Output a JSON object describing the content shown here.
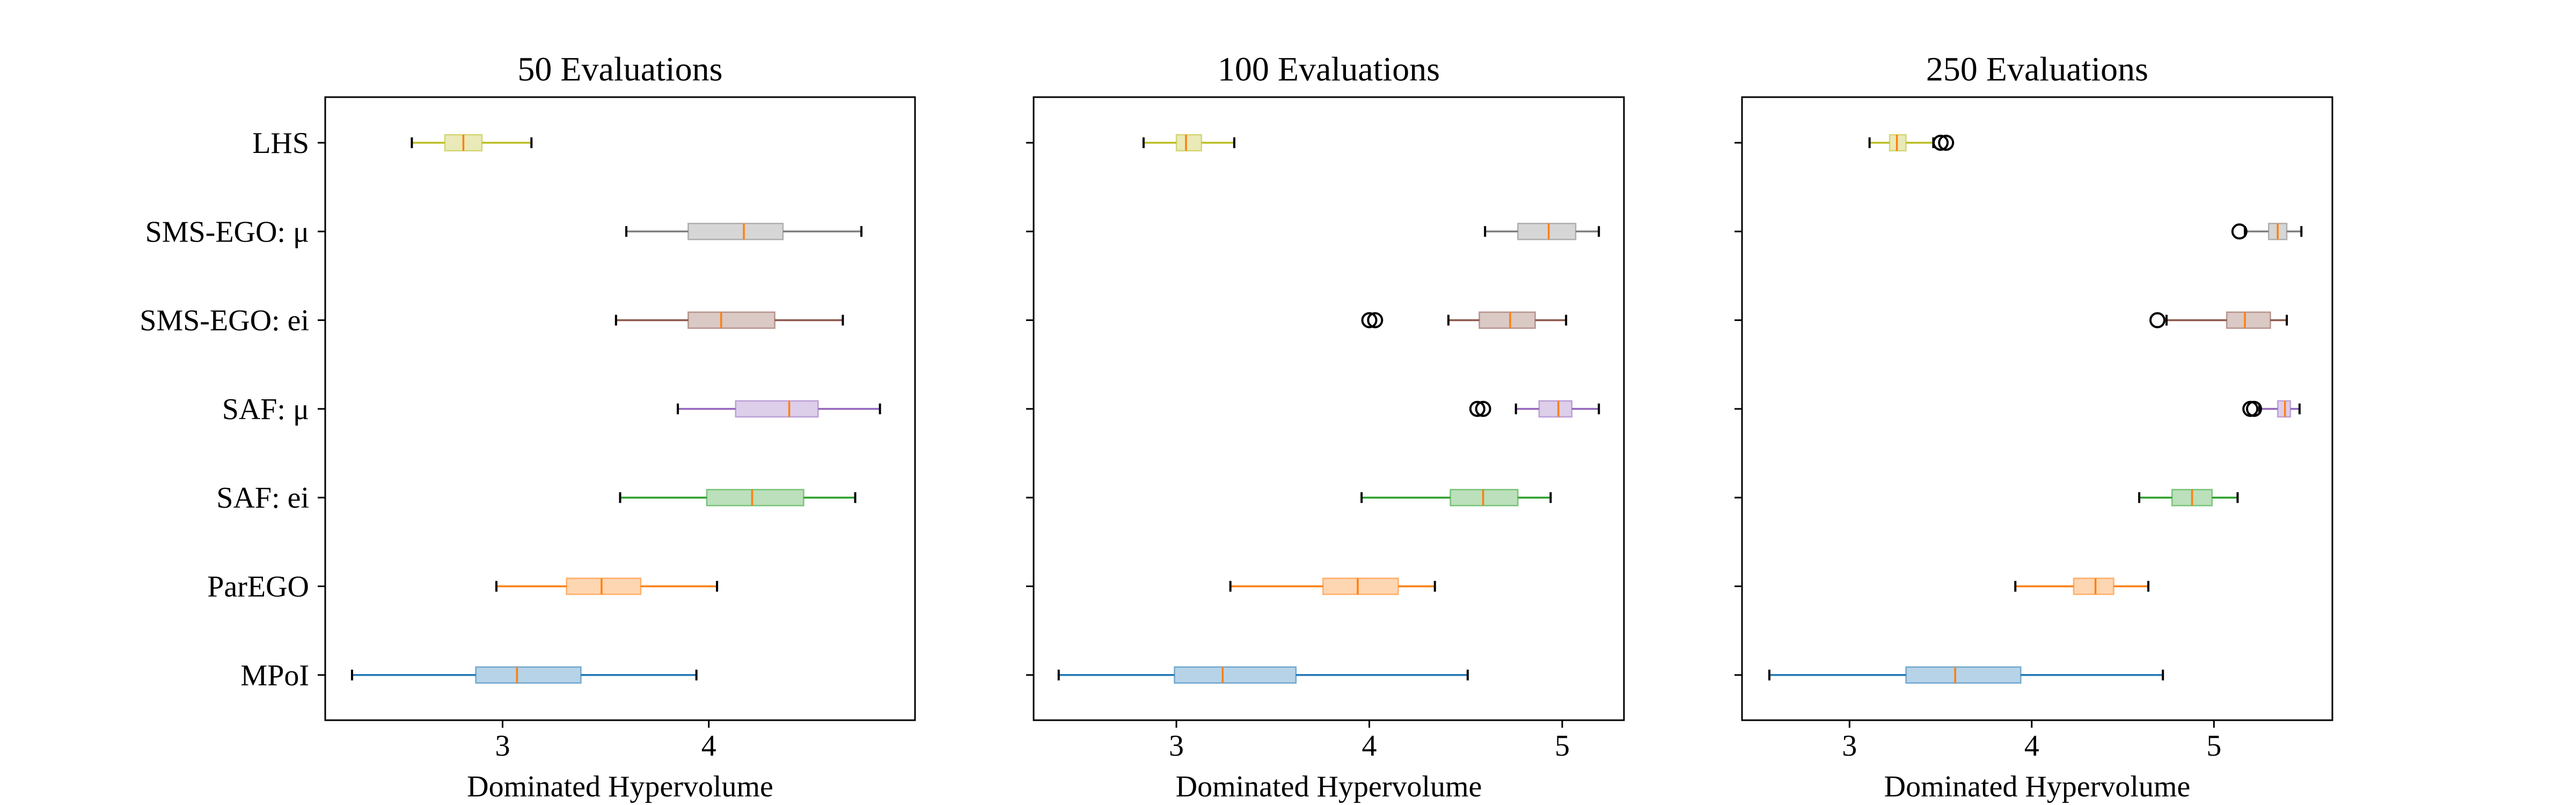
{
  "chart_data": [
    {
      "type": "boxplot",
      "title": "50 Evaluations",
      "xlabel": "Dominated Hypervolume",
      "xlim": [
        2.14,
        5.0
      ],
      "xticks": [
        "3",
        "4"
      ],
      "categories": [
        "LHS",
        "SMS-EGO: μ",
        "SMS-EGO: ei",
        "SAF: μ",
        "SAF: ei",
        "ParEGO",
        "MPoI"
      ],
      "boxes": [
        {
          "name": "LHS",
          "color": "#bcbd22",
          "whislo": 2.56,
          "q1": 2.72,
          "med": 2.81,
          "q3": 2.9,
          "whishi": 3.14,
          "fliers": []
        },
        {
          "name": "SMS-EGO: μ",
          "color": "#7f7f7f",
          "whislo": 3.6,
          "q1": 3.9,
          "med": 4.17,
          "q3": 4.36,
          "whishi": 4.74,
          "fliers": []
        },
        {
          "name": "SMS-EGO: ei",
          "color": "#8c564b",
          "whislo": 3.55,
          "q1": 3.9,
          "med": 4.06,
          "q3": 4.32,
          "whishi": 4.65,
          "fliers": []
        },
        {
          "name": "SAF: μ",
          "color": "#9467bd",
          "whislo": 3.85,
          "q1": 4.13,
          "med": 4.39,
          "q3": 4.53,
          "whishi": 4.83,
          "fliers": []
        },
        {
          "name": "SAF: ei",
          "color": "#2ca02c",
          "whislo": 3.57,
          "q1": 3.99,
          "med": 4.21,
          "q3": 4.46,
          "whishi": 4.71,
          "fliers": []
        },
        {
          "name": "ParEGO",
          "color": "#ff7f0e",
          "whislo": 2.97,
          "q1": 3.31,
          "med": 3.48,
          "q3": 3.67,
          "whishi": 4.04,
          "fliers": []
        },
        {
          "name": "MPoI",
          "color": "#1f77b4",
          "whislo": 2.27,
          "q1": 2.87,
          "med": 3.07,
          "q3": 3.38,
          "whishi": 3.94,
          "fliers": []
        }
      ]
    },
    {
      "type": "boxplot",
      "title": "100 Evaluations",
      "xlabel": "Dominated Hypervolume",
      "xlim": [
        2.26,
        5.32
      ],
      "xticks": [
        "3",
        "4",
        "5"
      ],
      "categories": [
        "LHS",
        "SMS-EGO: μ",
        "SMS-EGO: ei",
        "SAF: μ",
        "SAF: ei",
        "ParEGO",
        "MPoI"
      ],
      "boxes": [
        {
          "name": "LHS",
          "color": "#bcbd22",
          "whislo": 2.83,
          "q1": 3.0,
          "med": 3.05,
          "q3": 3.13,
          "whishi": 3.3,
          "fliers": []
        },
        {
          "name": "SMS-EGO: μ",
          "color": "#7f7f7f",
          "whislo": 4.6,
          "q1": 4.77,
          "med": 4.93,
          "q3": 5.07,
          "whishi": 5.19,
          "fliers": []
        },
        {
          "name": "SMS-EGO: ei",
          "color": "#8c564b",
          "whislo": 4.41,
          "q1": 4.57,
          "med": 4.73,
          "q3": 4.86,
          "whishi": 5.02,
          "fliers": [
            4.0,
            4.03
          ]
        },
        {
          "name": "SAF: μ",
          "color": "#9467bd",
          "whislo": 4.76,
          "q1": 4.88,
          "med": 4.98,
          "q3": 5.05,
          "whishi": 5.19,
          "fliers": [
            4.56,
            4.59
          ]
        },
        {
          "name": "SAF: ei",
          "color": "#2ca02c",
          "whislo": 3.96,
          "q1": 4.42,
          "med": 4.59,
          "q3": 4.77,
          "whishi": 4.94,
          "fliers": []
        },
        {
          "name": "ParEGO",
          "color": "#ff7f0e",
          "whislo": 3.28,
          "q1": 3.76,
          "med": 3.94,
          "q3": 4.15,
          "whishi": 4.34,
          "fliers": []
        },
        {
          "name": "MPoI",
          "color": "#1f77b4",
          "whislo": 2.39,
          "q1": 2.99,
          "med": 3.24,
          "q3": 3.62,
          "whishi": 4.51,
          "fliers": []
        }
      ]
    },
    {
      "type": "boxplot",
      "title": "250 Evaluations",
      "xlabel": "Dominated Hypervolume",
      "xlim": [
        2.41,
        5.65
      ],
      "xticks": [
        "3",
        "4",
        "5"
      ],
      "categories": [
        "LHS",
        "SMS-EGO: μ",
        "SMS-EGO: ei",
        "SAF: μ",
        "SAF: ei",
        "ParEGO",
        "MPoI"
      ],
      "boxes": [
        {
          "name": "LHS",
          "color": "#bcbd22",
          "whislo": 3.11,
          "q1": 3.22,
          "med": 3.26,
          "q3": 3.31,
          "whishi": 3.46,
          "fliers": [
            3.5,
            3.53
          ]
        },
        {
          "name": "SMS-EGO: μ",
          "color": "#7f7f7f",
          "whislo": 5.17,
          "q1": 5.3,
          "med": 5.35,
          "q3": 5.4,
          "whishi": 5.48,
          "fliers": [
            5.14
          ]
        },
        {
          "name": "SMS-EGO: ei",
          "color": "#8c564b",
          "whislo": 4.74,
          "q1": 5.07,
          "med": 5.17,
          "q3": 5.31,
          "whishi": 5.4,
          "fliers": [
            4.69
          ]
        },
        {
          "name": "SAF: μ",
          "color": "#9467bd",
          "whislo": 5.25,
          "q1": 5.35,
          "med": 5.39,
          "q3": 5.42,
          "whishi": 5.47,
          "fliers": [
            5.2,
            5.22
          ]
        },
        {
          "name": "SAF: ei",
          "color": "#2ca02c",
          "whislo": 4.59,
          "q1": 4.77,
          "med": 4.88,
          "q3": 4.99,
          "whishi": 5.13,
          "fliers": []
        },
        {
          "name": "ParEGO",
          "color": "#ff7f0e",
          "whislo": 3.91,
          "q1": 4.23,
          "med": 4.35,
          "q3": 4.45,
          "whishi": 4.64,
          "fliers": []
        },
        {
          "name": "MPoI",
          "color": "#1f77b4",
          "whislo": 2.56,
          "q1": 3.31,
          "med": 3.58,
          "q3": 3.94,
          "whishi": 4.72,
          "fliers": []
        }
      ]
    }
  ]
}
